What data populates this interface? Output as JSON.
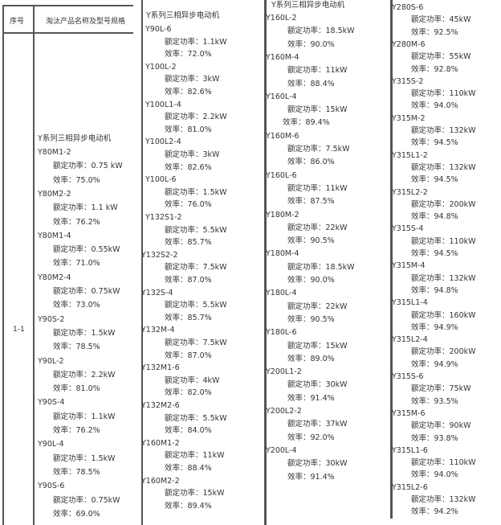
{
  "table": {
    "headers": {
      "seq": "序号",
      "product": "淘汰产品名称及型号规格"
    },
    "row_seq": "1-1",
    "labels": {
      "power": "额定功率：",
      "efficiency": "效率："
    },
    "panels": [
      {
        "title": "Y系列三相异步电动机",
        "items": [
          {
            "model": "Y80M1-2",
            "power": "0.75 kW",
            "efficiency": "75.0%"
          },
          {
            "model": "Y80M2-2",
            "power": "1.1 kW",
            "efficiency": "76.2%"
          },
          {
            "model": "Y80M1-4",
            "power": "0.55kW",
            "efficiency": "71.0%"
          },
          {
            "model": "Y80M2-4",
            "power": "0.75kW",
            "efficiency": "73.0%"
          },
          {
            "model": "Y90S-2",
            "power": "1.5kW",
            "efficiency": "78.5%"
          },
          {
            "model": "Y90L-2",
            "power": "2.2kW",
            "efficiency": "81.0%"
          },
          {
            "model": "Y90S-4",
            "power": "1.1kW",
            "efficiency": "76.2%"
          },
          {
            "model": "Y90L-4",
            "power": "1.5kW",
            "efficiency": "78.5%"
          },
          {
            "model": "Y90S-6",
            "power": "0.75kW",
            "efficiency": "69.0%"
          }
        ]
      },
      {
        "title": "Y系列三相异步电动机",
        "items": [
          {
            "model": "Y90L-6",
            "power": "1.1kW",
            "efficiency": "72.0%"
          },
          {
            "model": "Y100L-2",
            "power": "3kW",
            "efficiency": "82.6%"
          },
          {
            "model": "Y100L1-4",
            "power": "2.2kW",
            "efficiency": "81.0%"
          },
          {
            "model": "Y100L2-4",
            "power": "3kW",
            "efficiency": "82.6%"
          },
          {
            "model": "Y100L-6",
            "power": "1.5kW",
            "efficiency": "76.0%"
          },
          {
            "model": "Y132S1-2",
            "power": "5.5kW",
            "efficiency": "85.7%"
          },
          {
            "model": "Y132S2-2",
            "power": "7.5kW",
            "efficiency": "87.0%"
          },
          {
            "model": "Y132S-4",
            "power": "5.5kW",
            "efficiency": "85.7%"
          },
          {
            "model": "Y132M-4",
            "power": "7.5kW",
            "efficiency": "87.0%"
          },
          {
            "model": "Y132M1-6",
            "power": "4kW",
            "efficiency": "82.0%"
          },
          {
            "model": "Y132M2-6",
            "power": "5.5kW",
            "efficiency": "84.0%"
          },
          {
            "model": "Y160M1-2",
            "power": "11kW",
            "efficiency": "88.4%"
          },
          {
            "model": "Y160M2-2",
            "power": "15kW",
            "efficiency": "89.4%"
          }
        ]
      },
      {
        "title": "Y系列三相异步电动机",
        "items": [
          {
            "model": "Y160L-2",
            "power": "18.5kW",
            "efficiency": "90.0%"
          },
          {
            "model": "Y160M-4",
            "power": "11kW",
            "efficiency": "88.4%"
          },
          {
            "model": "Y160L-4",
            "power": "15kW",
            "efficiency": "89.4%"
          },
          {
            "model": "Y160M-6",
            "power": "7.5kW",
            "efficiency": "86.0%"
          },
          {
            "model": "Y160L-6",
            "power": "11kW",
            "efficiency": "87.5%"
          },
          {
            "model": "Y180M-2",
            "power": "22kW",
            "efficiency": "90.5%"
          },
          {
            "model": "Y180M-4",
            "power": "18.5kW",
            "efficiency": "90.0%"
          },
          {
            "model": "Y180L-4",
            "power": "22kW",
            "efficiency": "90.5%"
          },
          {
            "model": "Y180L-6",
            "power": "15kW",
            "efficiency": "89.0%"
          },
          {
            "model": "Y200L1-2",
            "power": "30kW",
            "efficiency": "91.4%"
          },
          {
            "model": "Y200L2-2",
            "power": "37kW",
            "efficiency": "92.0%"
          },
          {
            "model": "Y200L-4",
            "power": "30kW",
            "efficiency": "91.4%"
          }
        ]
      },
      {
        "title": "",
        "items": [
          {
            "model": "Y280S-6",
            "power": "45kW",
            "efficiency": "92.5%"
          },
          {
            "model": "Y280M-6",
            "power": "55kW",
            "efficiency": "92.8%"
          },
          {
            "model": "Y315S-2",
            "power": "110kW",
            "efficiency": "94.0%"
          },
          {
            "model": "Y315M-2",
            "power": "132kW",
            "efficiency": "94.5%"
          },
          {
            "model": "Y315L1-2",
            "power": "132kW",
            "efficiency": "94.5%"
          },
          {
            "model": "Y315L2-2",
            "power": "200kW",
            "efficiency": "94.8%"
          },
          {
            "model": "Y315S-4",
            "power": "110kW",
            "efficiency": "94.5%"
          },
          {
            "model": "Y315M-4",
            "power": "132kW",
            "efficiency": "94.8%"
          },
          {
            "model": "Y315L1-4",
            "power": "160kW",
            "efficiency": "94.9%"
          },
          {
            "model": "Y315L2-4",
            "power": "200kW",
            "efficiency": "94.9%"
          },
          {
            "model": "Y315S-6",
            "power": "75kW",
            "efficiency": "93.5%"
          },
          {
            "model": "Y315M-6",
            "power": "90kW",
            "efficiency": "93.8%"
          },
          {
            "model": "Y315L1-6",
            "power": "110kW",
            "efficiency": "94.0%"
          },
          {
            "model": "Y315L2-6",
            "power": "132kW",
            "efficiency": "94.2%"
          }
        ]
      }
    ]
  }
}
